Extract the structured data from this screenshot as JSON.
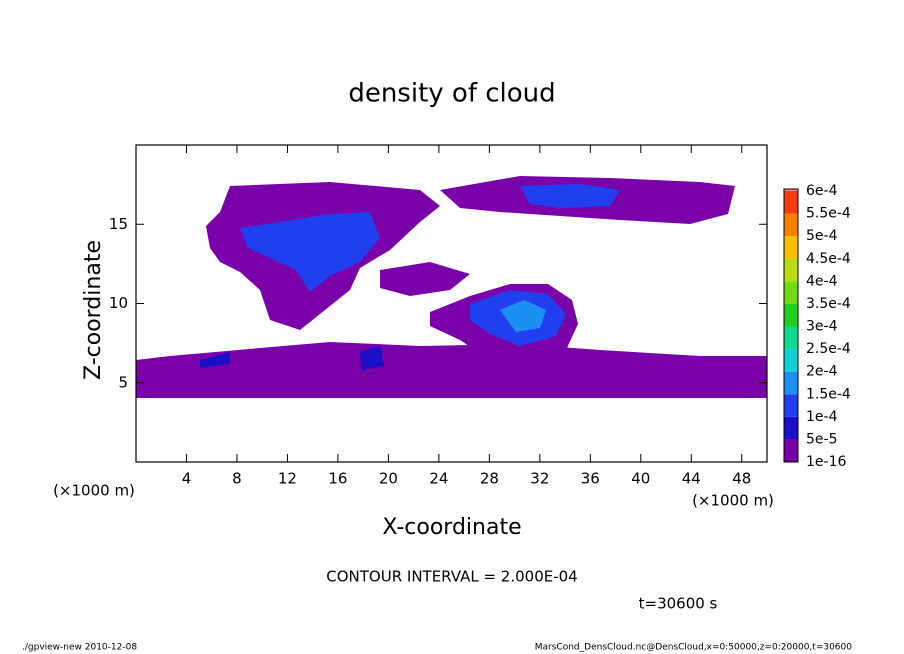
{
  "chart_data": {
    "type": "contour",
    "title": "density of cloud",
    "x_label": "X-coordinate",
    "y_label": "Z-coordinate",
    "x_unit": "(×1000 m)",
    "y_unit": "(×1000 m)",
    "xlim": [
      0,
      50
    ],
    "xticks": [
      4,
      8,
      12,
      16,
      20,
      24,
      28,
      32,
      36,
      40,
      44,
      48
    ],
    "ylim": [
      0,
      20
    ],
    "yticks": [
      5,
      10,
      15
    ],
    "levels": [
      {
        "value": 1e-16,
        "label": "1e-16"
      },
      {
        "value": 5e-05,
        "label": "5e-5"
      },
      {
        "value": 0.0001,
        "label": "1e-4"
      },
      {
        "value": 0.00015,
        "label": "1.5e-4"
      },
      {
        "value": 0.0002,
        "label": "2e-4"
      },
      {
        "value": 0.00025,
        "label": "2.5e-4"
      },
      {
        "value": 0.0003,
        "label": "3e-4"
      },
      {
        "value": 0.00035,
        "label": "3.5e-4"
      },
      {
        "value": 0.0004,
        "label": "4e-4"
      },
      {
        "value": 0.00045,
        "label": "4.5e-4"
      },
      {
        "value": 0.0005,
        "label": "5e-4"
      },
      {
        "value": 0.00055,
        "label": "5.5e-4"
      },
      {
        "value": 0.0006,
        "label": "6e-4"
      }
    ],
    "colors": [
      "#7a00aa",
      "#1a10c8",
      "#2040f0",
      "#1c90f0",
      "#10d0d8",
      "#10d890",
      "#20d020",
      "#70dc10",
      "#b8dc10",
      "#f8c000",
      "#f88000",
      "#f83c10",
      "#f88a8a"
    ],
    "contour_interval": "CONTOUR INTERVAL = 2.000E-04",
    "time_label": "t=30600 s",
    "footer_left": "./gpview-new   2010-12-08",
    "footer_right": "MarsCond_DensCloud.nc@DensCloud,x=0:50000,z=0:20000,t=30600"
  }
}
